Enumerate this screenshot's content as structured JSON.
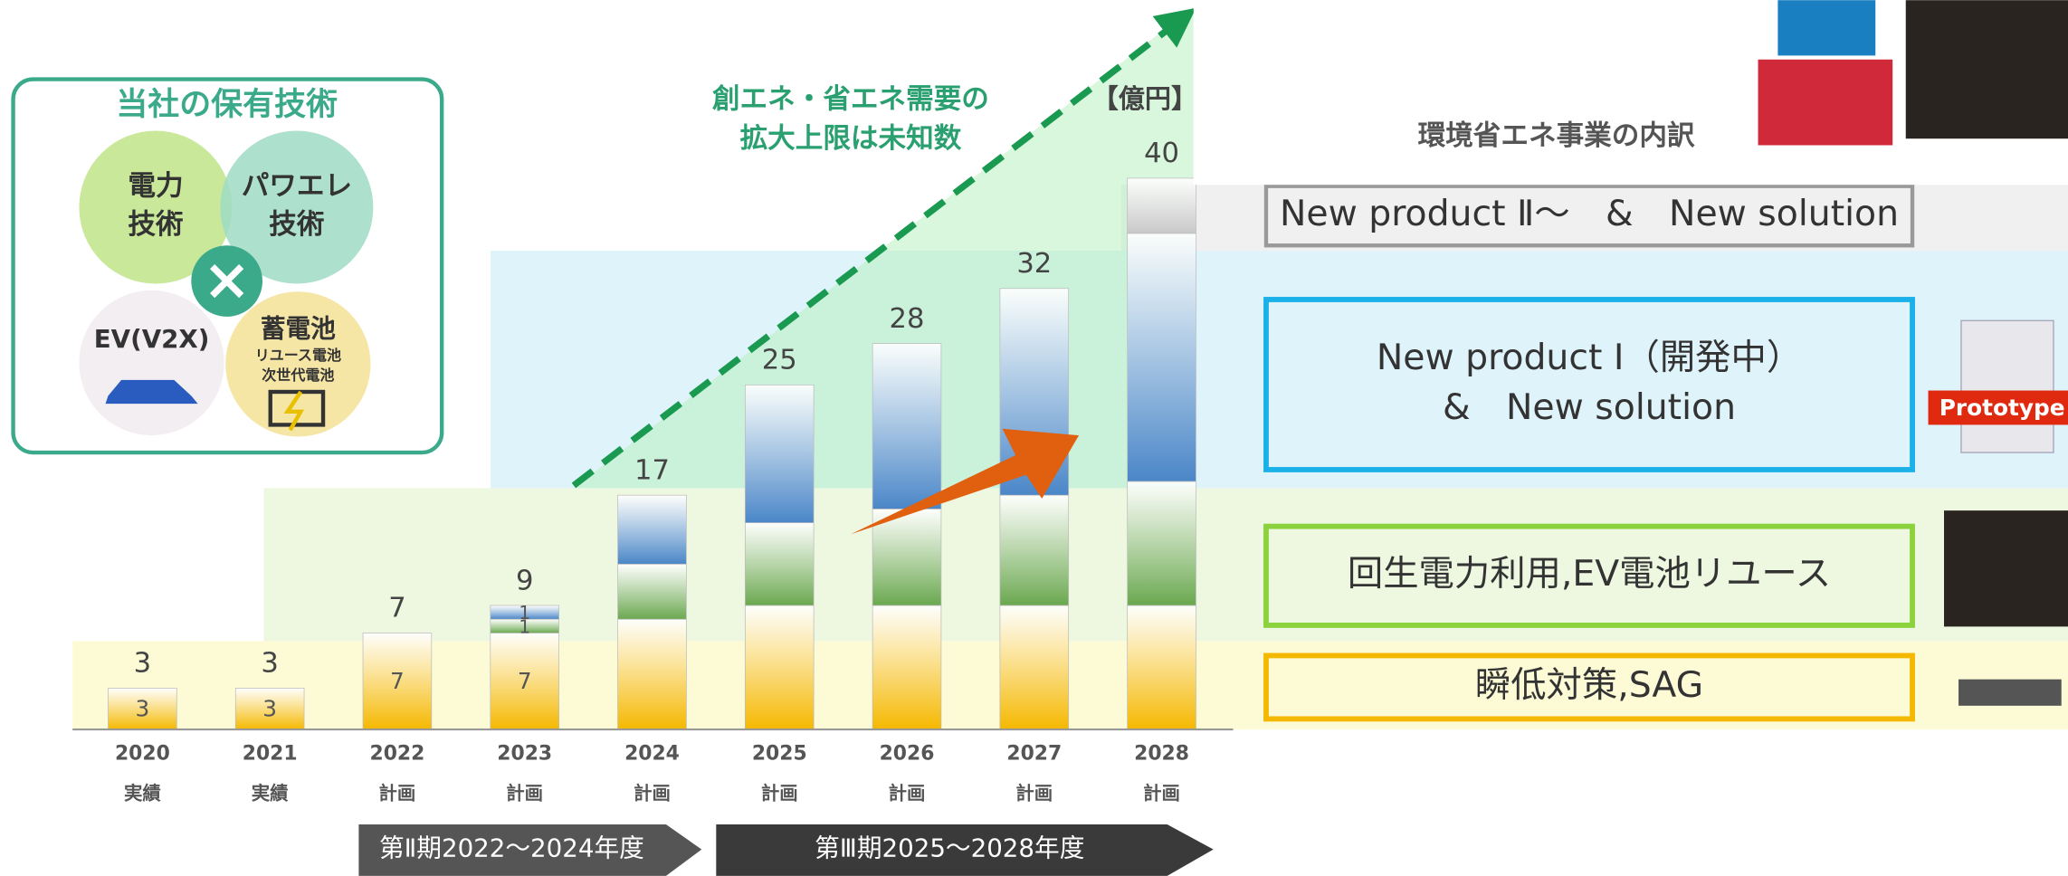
{
  "left_panel": {
    "title": "当社の保有技術",
    "circles": [
      [
        "電力",
        "技術"
      ],
      [
        "パワエレ",
        "技術"
      ],
      [
        "EV(V2X)"
      ],
      [
        "蓄電池",
        "リユース電池",
        "次世代電池"
      ]
    ]
  },
  "chart_data": {
    "type": "stacked_bar",
    "annotation": [
      "創エネ・省エネ需要の",
      "拡大上限は未知数"
    ],
    "unit": "【億円】",
    "legend_title": "環境省エネ事業の内訳",
    "categories": [
      "2020",
      "2021",
      "2022",
      "2023",
      "2024",
      "2025",
      "2026",
      "2027",
      "2028"
    ],
    "sublabels": [
      "実績",
      "実績",
      "計画",
      "計画",
      "計画",
      "計画",
      "計画",
      "計画",
      "計画"
    ],
    "totals": [
      3,
      3,
      7,
      9,
      17,
      25,
      28,
      32,
      40
    ],
    "ylim": [
      0,
      40
    ],
    "series": [
      {
        "name": [
          "瞬低対策,SAG"
        ],
        "color": "#f5b800",
        "band": "#fdfbd6",
        "values": [
          3,
          3,
          7,
          7,
          8,
          9,
          9,
          9,
          9
        ],
        "labels": [
          3,
          3,
          7,
          7,
          null,
          null,
          null,
          null,
          null
        ]
      },
      {
        "name": [
          "回生電力利用,EV電池リユース"
        ],
        "color": "#6aa84f",
        "border": "#8cd23c",
        "band": "#eef7e0",
        "values": [
          0,
          0,
          0,
          1,
          4,
          6,
          7,
          8,
          9
        ],
        "labels": [
          null,
          null,
          null,
          1,
          null,
          null,
          null,
          null,
          null
        ]
      },
      {
        "name": [
          "New product Ⅰ（開発中）",
          "&　New solution"
        ],
        "color": "#4a86c8",
        "border": "#1ab0e8",
        "band": "#dff3fa",
        "values": [
          0,
          0,
          0,
          1,
          5,
          10,
          12,
          15,
          18
        ],
        "labels": [
          null,
          null,
          null,
          1,
          null,
          null,
          null,
          null,
          null
        ]
      },
      {
        "name": [
          "New product Ⅱ～　&　New solution"
        ],
        "color": "#c8c8c8",
        "border": "#999999",
        "band": "#f0f0f0",
        "values": [
          0,
          0,
          0,
          0,
          0,
          0,
          0,
          0,
          4
        ],
        "labels": [
          null,
          null,
          null,
          null,
          null,
          null,
          null,
          null,
          null
        ]
      }
    ]
  },
  "phases": [
    "第Ⅱ期2022～2024年度",
    "第Ⅲ期2025～2028年度"
  ],
  "badge": "Prototype"
}
